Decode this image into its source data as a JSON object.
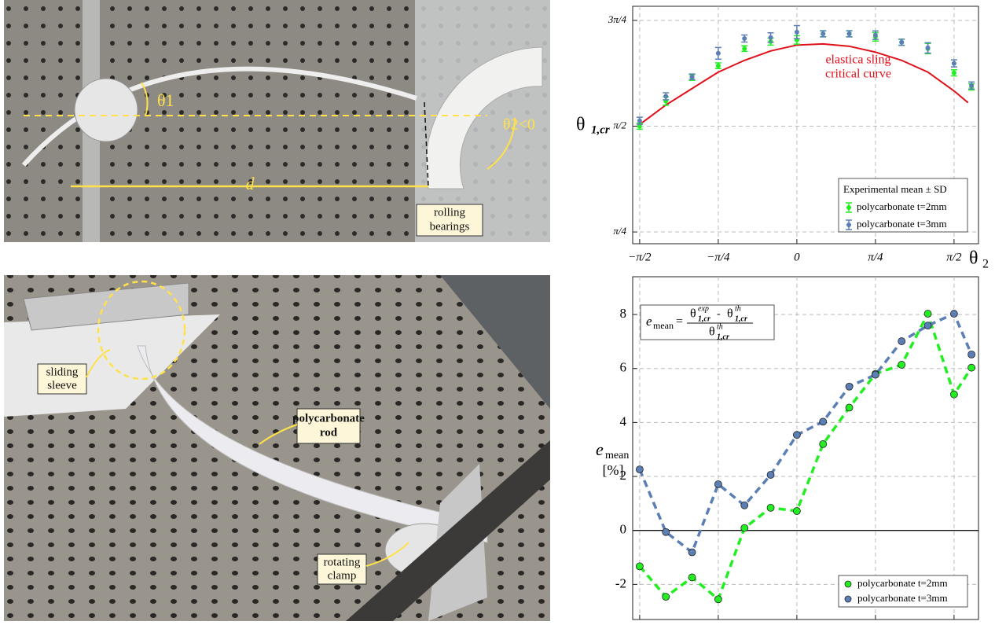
{
  "photos": {
    "top": {
      "labels": [
        "θ1",
        "θ2<0",
        "d"
      ],
      "callouts": [
        [
          "rolling",
          "bearings"
        ]
      ]
    },
    "bottom": {
      "callouts": [
        [
          "sliding",
          "sleeve"
        ],
        [
          "polycarbonate",
          "rod"
        ],
        [
          "rotating",
          "clamp"
        ]
      ]
    }
  },
  "chart_data": [
    {
      "type": "errorbar",
      "ylabel": {
        "symbol": "θ",
        "subscript": "1,cr"
      },
      "xlabel": {
        "symbol": "θ",
        "subscript": "2"
      },
      "x": [
        -90,
        -75,
        -60,
        -45,
        -30,
        -15,
        0,
        15,
        30,
        45,
        60,
        75,
        90,
        100
      ],
      "series": [
        {
          "name": "polycarbonate t=2mm",
          "color": "#22ee22",
          "values": [
            90,
            100.7,
            110.7,
            115.7,
            123,
            126,
            126.7,
            129.3,
            129.3,
            128,
            125.7,
            123,
            112.7,
            106.7
          ],
          "errors": [
            1.3,
            1.8,
            1.2,
            1.2,
            1.2,
            1.5,
            1.8,
            1.3,
            1.3,
            1.8,
            1.3,
            2.2,
            1.3,
            1.3
          ]
        },
        {
          "name": "polycarbonate t=3mm",
          "color": "#5b7fb5",
          "values": [
            92.3,
            102.7,
            111,
            121,
            127.3,
            127.7,
            130,
            129.3,
            129.3,
            128.7,
            125.7,
            123.3,
            116.7,
            107.3
          ],
          "errors": [
            1.5,
            1.5,
            1.2,
            2.5,
            1.5,
            2,
            2.8,
            1.3,
            1.3,
            1.8,
            1.3,
            2.2,
            1.5,
            1.5
          ]
        }
      ],
      "curve": {
        "color": "#e0101a",
        "x": [
          -90,
          -75,
          -60,
          -45,
          -30,
          -15,
          0,
          15,
          30,
          45,
          60,
          75,
          90,
          98
        ],
        "values": [
          90.7,
          99,
          106,
          113,
          118,
          122,
          124.5,
          125,
          124,
          121.5,
          118,
          113,
          105,
          100
        ]
      },
      "annotation": [
        "elastica sling",
        "critical curve"
      ],
      "legend_title": "Experimental mean ± SD",
      "xlim": [
        -94,
        104
      ],
      "ylim": [
        40,
        141
      ],
      "xticks": [
        {
          "value": -90,
          "label": "−π/2"
        },
        {
          "value": -45,
          "label": "−π/4"
        },
        0,
        {
          "value": 45,
          "label": "π/4"
        },
        {
          "value": 90,
          "label": "π/2"
        }
      ],
      "yticks": [
        {
          "value": 45,
          "label": "π/4"
        },
        {
          "value": 90,
          "label": "π/2"
        },
        {
          "value": 135,
          "label": "3π/4"
        }
      ],
      "grid": true,
      "legend": "lower right"
    },
    {
      "type": "line",
      "ylabel": {
        "symbol": "e",
        "subscript": "mean",
        "unit": "[%]"
      },
      "formula": {
        "symbol": "e",
        "subscript": "mean",
        "equals": "=",
        "terms": [
          {
            "symbol": "θ",
            "sup": "exp",
            "sub": "1,cr"
          },
          {
            "symbol": "θ",
            "sup": "th",
            "sub": "1,cr"
          }
        ],
        "operator": "-",
        "denominator": {
          "symbol": "θ",
          "sup": "th",
          "sub": "1,cr"
        }
      },
      "x": [
        -90,
        -75,
        -60,
        -45,
        -30,
        -15,
        0,
        15,
        30,
        45,
        60,
        75,
        90,
        100
      ],
      "series": [
        {
          "name": "polycarbonate t=2mm",
          "color": "#22ee22",
          "values": [
            -1.33,
            -2.46,
            -1.74,
            -2.55,
            0.09,
            0.84,
            0.72,
            3.2,
            4.55,
            5.8,
            6.14,
            8.03,
            5.04,
            6.03
          ]
        },
        {
          "name": "polycarbonate t=3mm",
          "color": "#5b7fb5",
          "values": [
            2.26,
            -0.06,
            -0.81,
            1.71,
            0.93,
            2.06,
            3.54,
            4.03,
            5.33,
            5.77,
            7.01,
            7.59,
            8.03,
            6.52
          ]
        }
      ],
      "xlim": [
        -94,
        104
      ],
      "ylim": [
        -3.3,
        9.4
      ],
      "yticks": [
        -2,
        0,
        2,
        4,
        6,
        8
      ],
      "grid": true,
      "legend": "lower right"
    }
  ]
}
